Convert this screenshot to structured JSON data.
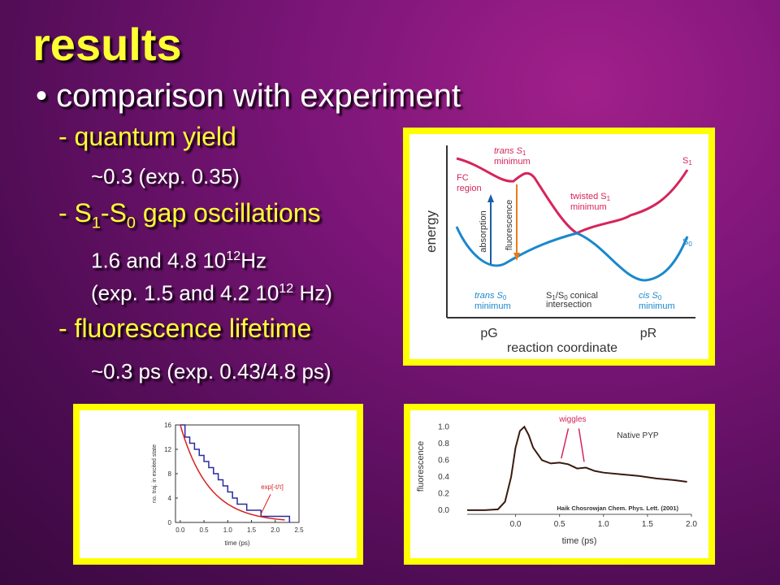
{
  "slide": {
    "title": "results",
    "bullet": "• comparison with experiment",
    "items": [
      {
        "heading": "- quantum yield",
        "detail": "~0.3 (exp. 0.35)"
      },
      {
        "heading_pre": "- S",
        "heading_sub1": "1",
        "heading_mid": "-S",
        "heading_sub2": "0",
        "heading_post": " gap oscillations",
        "detail1_pre": "1.6 and 4.8 10",
        "detail1_sup": "12",
        "detail1_post": "Hz",
        "detail2_pre": "(exp. 1.5 and 4.2 10",
        "detail2_sup": "12",
        "detail2_post": " Hz)"
      },
      {
        "heading": "- fluorescence lifetime",
        "detail": "~0.3 ps (exp. 0.43/4.8 ps)"
      }
    ]
  },
  "diagram": {
    "ylabel": "energy",
    "xlabel": "reaction coordinate",
    "x_ticks": [
      "pG",
      "pR"
    ],
    "s1_label": "S",
    "s1_sub": "1",
    "s0_label": "S",
    "s0_sub": "0",
    "fc_label": [
      "FC",
      "region"
    ],
    "trans_s1": [
      "trans S",
      "1",
      "minimum"
    ],
    "twisted_s1": [
      "twisted S",
      "1",
      "minimum"
    ],
    "trans_s0": [
      "trans S",
      "0",
      "minimum"
    ],
    "conical": [
      "S",
      "1",
      "/S",
      "0",
      " conical",
      "intersection"
    ],
    "cis_s0": [
      "cis S",
      "0",
      "minimum"
    ],
    "absorption": "absorption",
    "fluorescence": "fluorescence",
    "colors": {
      "s1": "#d6245a",
      "s0": "#1a88cc",
      "absorption": "#1a5fa8",
      "fluorescence": "#e87a1e",
      "labels_s1": "#d6245a",
      "labels_s0": "#1a88cc"
    }
  },
  "chart_data": [
    {
      "type": "line",
      "ylabel": "no. traj. in excited state",
      "xlabel": "time (ps)",
      "x_ticks": [
        "0.0",
        "0.5",
        "1.0",
        "1.5",
        "2.0",
        "2.5"
      ],
      "y_ticks": [
        "0",
        "4",
        "8",
        "12",
        "16"
      ],
      "xlim": [
        -0.1,
        2.5
      ],
      "ylim": [
        0,
        16
      ],
      "series": [
        {
          "kind": "step",
          "color": "#2b2b9e",
          "x": [
            0.0,
            0.1,
            0.2,
            0.3,
            0.4,
            0.5,
            0.6,
            0.7,
            0.8,
            0.9,
            1.0,
            1.1,
            1.2,
            1.3,
            1.4,
            1.5,
            1.6,
            1.7,
            1.9,
            2.2,
            2.3
          ],
          "values": [
            16,
            14,
            13,
            12,
            11,
            10,
            9,
            8,
            7,
            6,
            5,
            4,
            3,
            3,
            2,
            2,
            2,
            1,
            1,
            1,
            0
          ]
        },
        {
          "name": "exp[-t/τ]",
          "kind": "curve",
          "color": "#d62020",
          "tau": 0.6,
          "n0": 16
        }
      ],
      "annotation": "exp[-t/τ]"
    },
    {
      "type": "line",
      "ylabel": "fluorescence",
      "xlabel": "time (ps)",
      "x_ticks": [
        "0.0",
        "0.5",
        "1.0",
        "1.5",
        "2.0"
      ],
      "y_ticks": [
        "0.0",
        "0.2",
        "0.4",
        "0.6",
        "0.8",
        "1.0"
      ],
      "xlim": [
        -0.55,
        2.0
      ],
      "ylim": [
        -0.05,
        1.1
      ],
      "legend": "Native PYP",
      "annotation": "wiggles",
      "citation": "Haik Chosrowjan Chem. Phys. Lett. (2001)",
      "series": [
        {
          "color": "#3a1a10",
          "x": [
            -0.55,
            -0.35,
            -0.2,
            -0.12,
            -0.05,
            0.0,
            0.05,
            0.1,
            0.15,
            0.2,
            0.3,
            0.4,
            0.5,
            0.6,
            0.7,
            0.8,
            0.9,
            1.0,
            1.2,
            1.4,
            1.6,
            1.8,
            1.95
          ],
          "values": [
            0.0,
            0.0,
            0.01,
            0.1,
            0.4,
            0.75,
            0.95,
            1.0,
            0.9,
            0.75,
            0.6,
            0.56,
            0.57,
            0.55,
            0.5,
            0.51,
            0.47,
            0.45,
            0.43,
            0.41,
            0.38,
            0.36,
            0.34
          ]
        }
      ]
    }
  ]
}
